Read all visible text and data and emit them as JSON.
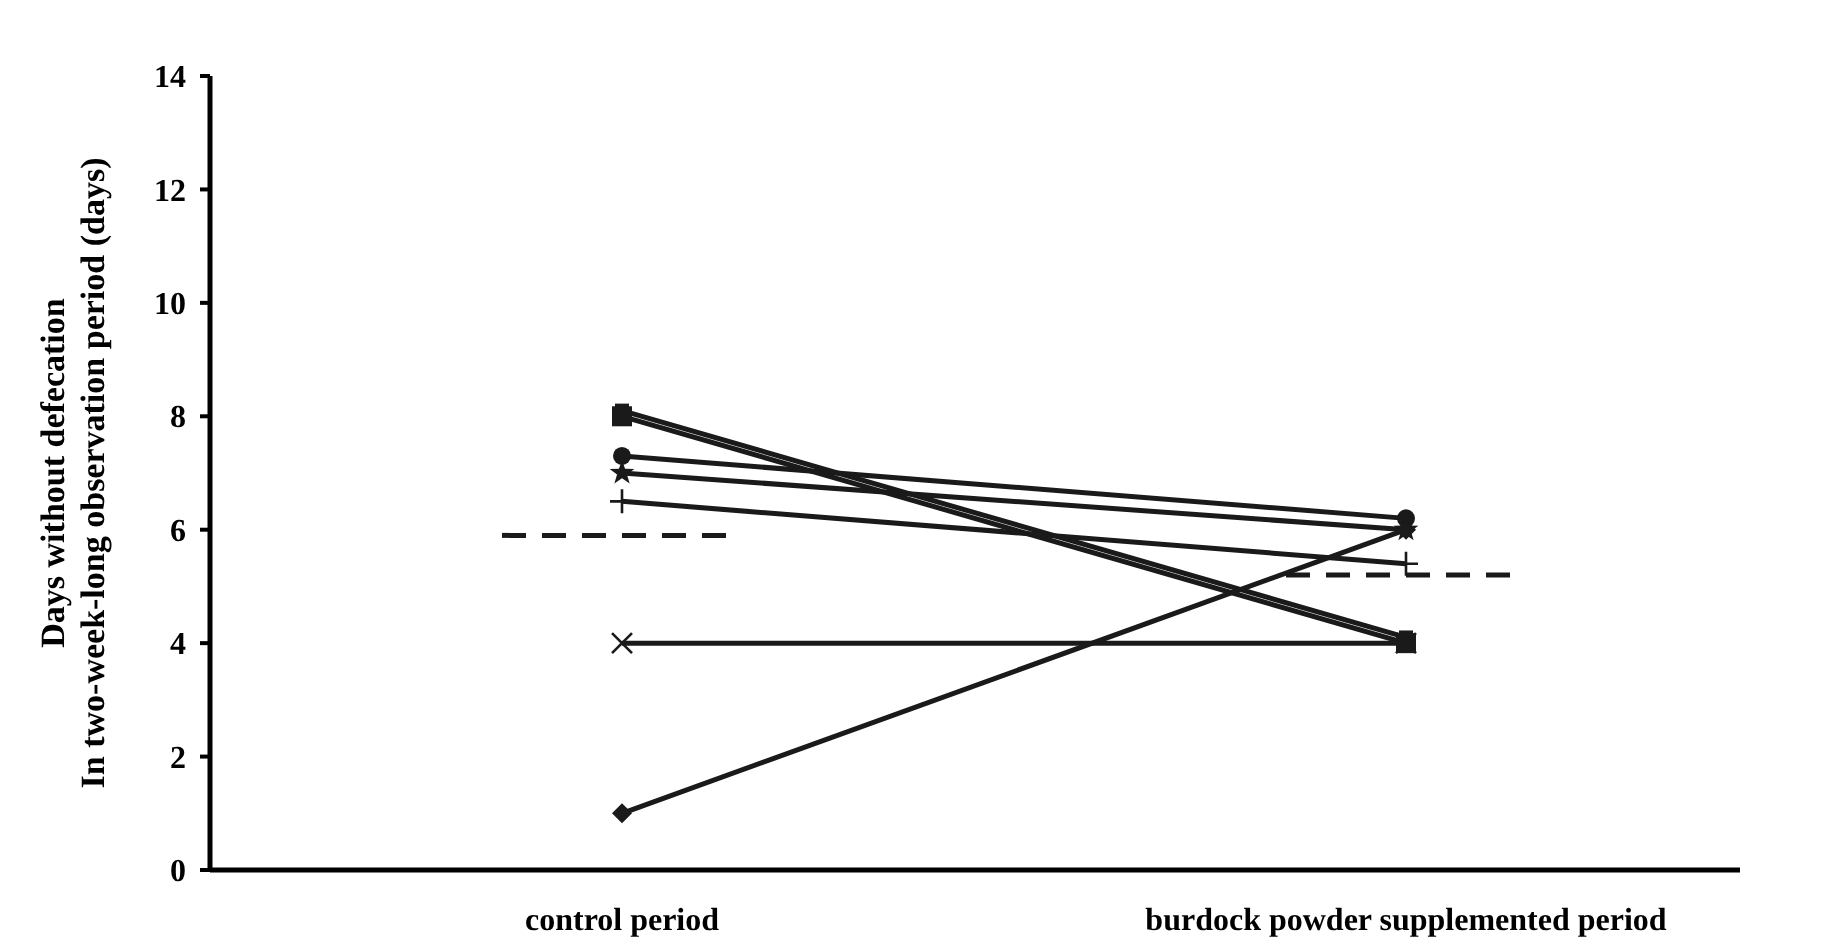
{
  "chart_data": {
    "type": "line",
    "ylabel": "Days without defecation\nIn two-week-long observation period (days)",
    "categories": [
      "control period",
      "burdock powder supplemented period"
    ],
    "ylim": [
      0,
      14
    ],
    "yticks": [
      0,
      2,
      4,
      6,
      8,
      10,
      12,
      14
    ],
    "grid": false,
    "ref_lines": [
      {
        "axis": "y",
        "value": 5.9,
        "color": "#1a1a1a",
        "line_style": "dashed"
      },
      {
        "axis": "y",
        "value": 5.2,
        "color": "#1a1a1a",
        "line_style": "dashed"
      }
    ],
    "series": [
      {
        "color": "#1a1a1a",
        "marker": "square",
        "values": [
          8,
          4
        ]
      },
      {
        "color": "#1a1a1a",
        "marker": "square",
        "values": [
          8.1,
          4.1
        ]
      },
      {
        "color": "#1a1a1a",
        "marker": "circle",
        "values": [
          7.3,
          6.2
        ]
      },
      {
        "color": "#1a1a1a",
        "marker": "star",
        "values": [
          7,
          6
        ]
      },
      {
        "color": "#1a1a1a",
        "marker": "cross",
        "values": [
          6.5,
          5.4
        ]
      },
      {
        "color": "#1a1a1a",
        "marker": "x",
        "values": [
          4,
          4
        ]
      },
      {
        "color": "#1a1a1a",
        "marker": "diamond",
        "values": [
          1,
          6
        ]
      }
    ]
  }
}
